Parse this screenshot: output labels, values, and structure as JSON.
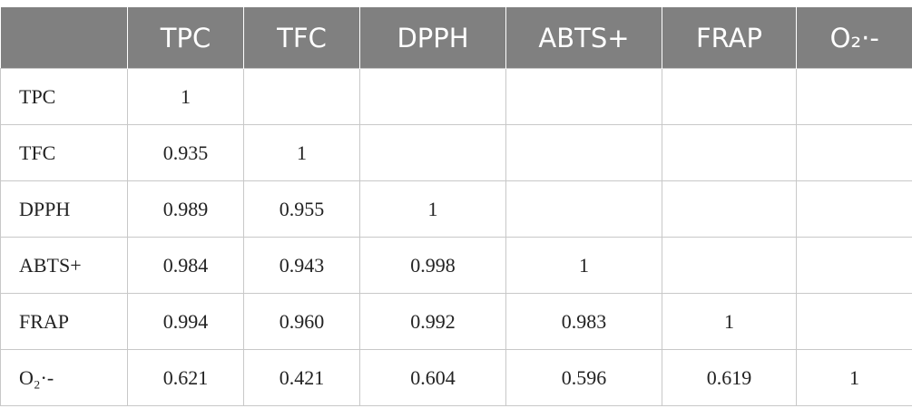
{
  "table": {
    "header": [
      "TPC",
      "TFC",
      "DPPH",
      "ABTS+",
      "FRAP",
      "O₂·-"
    ],
    "rows": [
      {
        "label": "TPC",
        "values": [
          "1"
        ]
      },
      {
        "label": "TFC",
        "values": [
          "0.935",
          "1"
        ]
      },
      {
        "label": "DPPH",
        "values": [
          "0.989",
          "0.955",
          "1"
        ]
      },
      {
        "label": "ABTS+",
        "values": [
          "0.984",
          "0.943",
          "0.998",
          "1"
        ]
      },
      {
        "label": "FRAP",
        "values": [
          "0.994",
          "0.960",
          "0.992",
          "0.983",
          "1"
        ]
      },
      {
        "label": "O₂·-",
        "values": [
          "0.621",
          "0.421",
          "0.604",
          "0.596",
          "0.619",
          "1"
        ]
      }
    ]
  }
}
